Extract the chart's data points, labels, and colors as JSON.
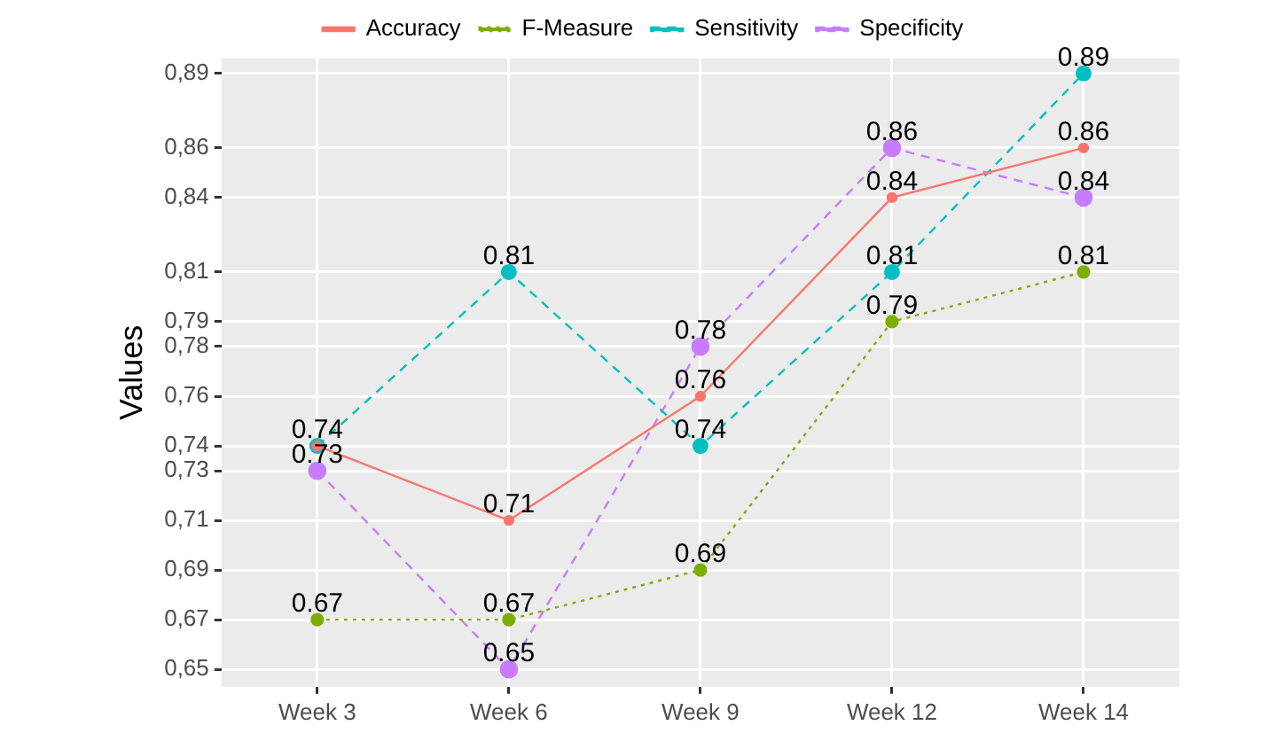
{
  "chart_data": {
    "type": "line",
    "ylabel": "Values",
    "categories": [
      "Week 3",
      "Week 6",
      "Week 9",
      "Week 12",
      "Week 14"
    ],
    "series": [
      {
        "name": "Accuracy",
        "color": "#f8766d",
        "line_style": "solid",
        "values": [
          0.74,
          0.71,
          0.76,
          0.84,
          0.86
        ],
        "value_labels": [
          "0.74",
          "0.71",
          "0.76",
          "0.84",
          "0.86"
        ]
      },
      {
        "name": "F-Measure",
        "color": "#7cae00",
        "line_style": "dotted",
        "values": [
          0.67,
          0.67,
          0.69,
          0.79,
          0.81
        ],
        "value_labels": [
          "0.67",
          "0.67",
          "0.69",
          "0.79",
          "0.81"
        ]
      },
      {
        "name": "Sensitivity",
        "color": "#00bfc4",
        "line_style": "dashed",
        "values": [
          0.74,
          0.81,
          0.74,
          0.81,
          0.89
        ],
        "value_labels": [
          null,
          "0.81",
          "0.74",
          "0.81",
          "0.89"
        ]
      },
      {
        "name": "Specificity",
        "color": "#c77cff",
        "line_style": "dashed",
        "values": [
          0.73,
          0.65,
          0.78,
          0.86,
          0.84
        ],
        "value_labels": [
          "0.73",
          "0.65",
          "0.78",
          "0.86",
          "0.84"
        ]
      }
    ],
    "ylim": [
      0.643,
      0.896
    ],
    "yticks": [
      {
        "value": 0.65,
        "label": "0,65"
      },
      {
        "value": 0.67,
        "label": "0,67"
      },
      {
        "value": 0.69,
        "label": "0,69"
      },
      {
        "value": 0.71,
        "label": "0,71"
      },
      {
        "value": 0.73,
        "label": "0,73"
      },
      {
        "value": 0.74,
        "label": "0,74"
      },
      {
        "value": 0.76,
        "label": "0,76"
      },
      {
        "value": 0.78,
        "label": "0,78"
      },
      {
        "value": 0.79,
        "label": "0,79"
      },
      {
        "value": 0.81,
        "label": "0,81"
      },
      {
        "value": 0.84,
        "label": "0,84"
      },
      {
        "value": 0.86,
        "label": "0,86"
      },
      {
        "value": 0.89,
        "label": "0,89"
      }
    ],
    "grid": true,
    "legend": "top",
    "marker": "circle"
  }
}
